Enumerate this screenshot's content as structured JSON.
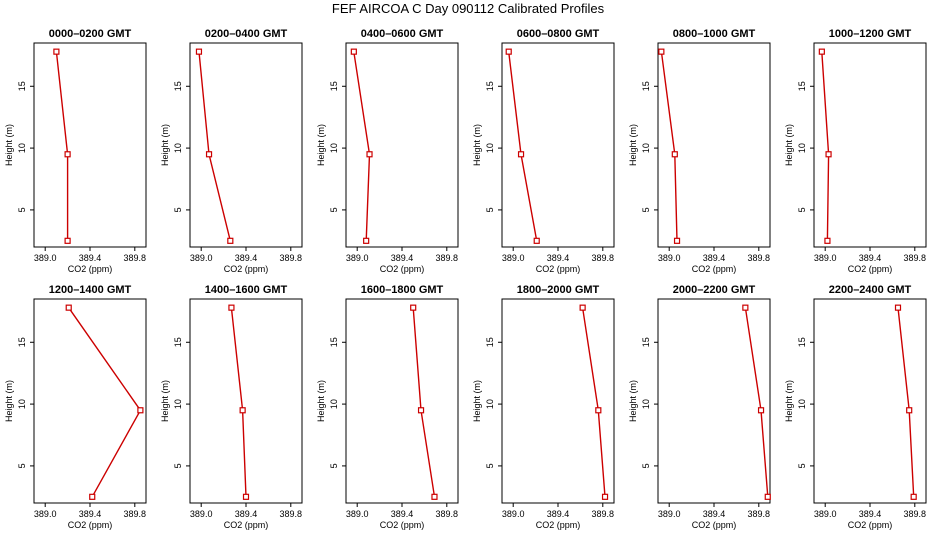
{
  "figure": {
    "title": "FEF AIRCOA C  Day 090112  Calibrated Profiles"
  },
  "style": {
    "line_color": "#cc0000",
    "marker_color": "#cc0000",
    "axis_color": "#000000"
  },
  "chart_data": [
    {
      "type": "line",
      "title": "0000–0200 GMT",
      "xlabel": "CO2 (ppm)",
      "ylabel": "Height (m)",
      "xlim": [
        388.9,
        389.9
      ],
      "ylim": [
        2,
        18.5
      ],
      "xticks": [
        "389.0",
        "389.4",
        "389.8"
      ],
      "yticks": [
        "5",
        "10",
        "15"
      ],
      "x": [
        389.1,
        389.2,
        389.2
      ],
      "y": [
        17.8,
        9.5,
        2.5
      ]
    },
    {
      "type": "line",
      "title": "0200–0400 GMT",
      "xlabel": "CO2 (ppm)",
      "ylabel": "Height (m)",
      "xlim": [
        388.9,
        389.9
      ],
      "ylim": [
        2,
        18.5
      ],
      "xticks": [
        "389.0",
        "389.4",
        "389.8"
      ],
      "yticks": [
        "5",
        "10",
        "15"
      ],
      "x": [
        388.98,
        389.07,
        389.26
      ],
      "y": [
        17.8,
        9.5,
        2.5
      ]
    },
    {
      "type": "line",
      "title": "0400–0600 GMT",
      "xlabel": "CO2 (ppm)",
      "ylabel": "Height (m)",
      "xlim": [
        388.9,
        389.9
      ],
      "ylim": [
        2,
        18.5
      ],
      "xticks": [
        "389.0",
        "389.4",
        "389.8"
      ],
      "yticks": [
        "5",
        "10",
        "15"
      ],
      "x": [
        388.97,
        389.11,
        389.08
      ],
      "y": [
        17.8,
        9.5,
        2.5
      ]
    },
    {
      "type": "line",
      "title": "0600–0800 GMT",
      "xlabel": "CO2 (ppm)",
      "ylabel": "Height (m)",
      "xlim": [
        388.9,
        389.9
      ],
      "ylim": [
        2,
        18.5
      ],
      "xticks": [
        "389.0",
        "389.4",
        "389.8"
      ],
      "yticks": [
        "5",
        "10",
        "15"
      ],
      "x": [
        388.96,
        389.07,
        389.21
      ],
      "y": [
        17.8,
        9.5,
        2.5
      ]
    },
    {
      "type": "line",
      "title": "0800–1000 GMT",
      "xlabel": "CO2 (ppm)",
      "ylabel": "Height (m)",
      "xlim": [
        388.9,
        389.9
      ],
      "ylim": [
        2,
        18.5
      ],
      "xticks": [
        "389.0",
        "389.4",
        "389.8"
      ],
      "yticks": [
        "5",
        "10",
        "15"
      ],
      "x": [
        388.93,
        389.05,
        389.07
      ],
      "y": [
        17.8,
        9.5,
        2.5
      ]
    },
    {
      "type": "line",
      "title": "1000–1200 GMT",
      "xlabel": "CO2 (ppm)",
      "ylabel": "Height (m)",
      "xlim": [
        388.9,
        389.9
      ],
      "ylim": [
        2,
        18.5
      ],
      "xticks": [
        "389.0",
        "389.4",
        "389.8"
      ],
      "yticks": [
        "5",
        "10",
        "15"
      ],
      "x": [
        388.97,
        389.03,
        389.02
      ],
      "y": [
        17.8,
        9.5,
        2.5
      ]
    },
    {
      "type": "line",
      "title": "1200–1400 GMT",
      "xlabel": "CO2 (ppm)",
      "ylabel": "Height (m)",
      "xlim": [
        388.9,
        389.9
      ],
      "ylim": [
        2,
        18.5
      ],
      "xticks": [
        "389.0",
        "389.4",
        "389.8"
      ],
      "yticks": [
        "5",
        "10",
        "15"
      ],
      "x": [
        389.21,
        389.85,
        389.42
      ],
      "y": [
        17.8,
        9.5,
        2.5
      ]
    },
    {
      "type": "line",
      "title": "1400–1600 GMT",
      "xlabel": "CO2 (ppm)",
      "ylabel": "Height (m)",
      "xlim": [
        388.9,
        389.9
      ],
      "ylim": [
        2,
        18.5
      ],
      "xticks": [
        "389.0",
        "389.4",
        "389.8"
      ],
      "yticks": [
        "5",
        "10",
        "15"
      ],
      "x": [
        389.27,
        389.37,
        389.4
      ],
      "y": [
        17.8,
        9.5,
        2.5
      ]
    },
    {
      "type": "line",
      "title": "1600–1800 GMT",
      "xlabel": "CO2 (ppm)",
      "ylabel": "Height (m)",
      "xlim": [
        388.9,
        389.9
      ],
      "ylim": [
        2,
        18.5
      ],
      "xticks": [
        "389.0",
        "389.4",
        "389.8"
      ],
      "yticks": [
        "5",
        "10",
        "15"
      ],
      "x": [
        389.5,
        389.57,
        389.69
      ],
      "y": [
        17.8,
        9.5,
        2.5
      ]
    },
    {
      "type": "line",
      "title": "1800–2000 GMT",
      "xlabel": "CO2 (ppm)",
      "ylabel": "Height (m)",
      "xlim": [
        388.9,
        389.9
      ],
      "ylim": [
        2,
        18.5
      ],
      "xticks": [
        "389.0",
        "389.4",
        "389.8"
      ],
      "yticks": [
        "5",
        "10",
        "15"
      ],
      "x": [
        389.62,
        389.76,
        389.82
      ],
      "y": [
        17.8,
        9.5,
        2.5
      ]
    },
    {
      "type": "line",
      "title": "2000–2200 GMT",
      "xlabel": "CO2 (ppm)",
      "ylabel": "Height (m)",
      "xlim": [
        388.9,
        389.9
      ],
      "ylim": [
        2,
        18.5
      ],
      "xticks": [
        "389.0",
        "389.4",
        "389.8"
      ],
      "yticks": [
        "5",
        "10",
        "15"
      ],
      "x": [
        389.68,
        389.82,
        389.88
      ],
      "y": [
        17.8,
        9.5,
        2.5
      ]
    },
    {
      "type": "line",
      "title": "2200–2400 GMT",
      "xlabel": "CO2 (ppm)",
      "ylabel": "Height (m)",
      "xlim": [
        388.9,
        389.9
      ],
      "ylim": [
        2,
        18.5
      ],
      "xticks": [
        "389.0",
        "389.4",
        "389.8"
      ],
      "yticks": [
        "5",
        "10",
        "15"
      ],
      "x": [
        389.65,
        389.75,
        389.79
      ],
      "y": [
        17.8,
        9.5,
        2.5
      ]
    }
  ]
}
